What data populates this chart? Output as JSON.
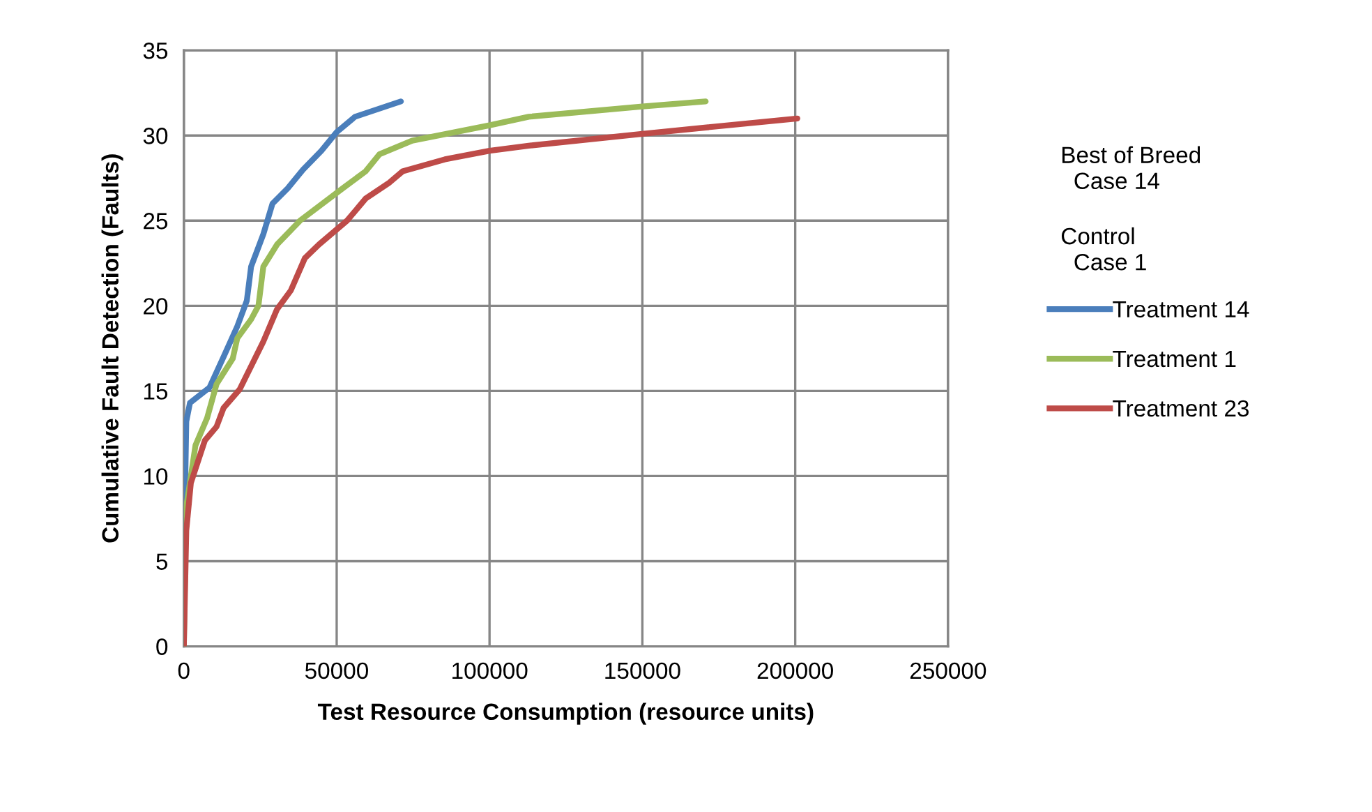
{
  "chart_data": {
    "type": "line",
    "xlabel": "Test Resource Consumption (resource units)",
    "ylabel": "Cumulative Fault Detection (Faults)",
    "annotations": [
      "Best of Breed\n  Case 14",
      "Control\n  Case 1"
    ],
    "xlim": [
      0,
      250000
    ],
    "xticks": [
      0,
      50000,
      100000,
      150000,
      200000,
      250000
    ],
    "ylim": [
      0,
      35
    ],
    "yticks": [
      0,
      5,
      10,
      15,
      20,
      25,
      30,
      35
    ],
    "grid": true,
    "legend": "right",
    "marker": "none",
    "line_style": "solid",
    "series": [
      {
        "name": "Treatment 14",
        "color": "#4a7ebb",
        "x": [
          0,
          300,
          800,
          2000,
          8400,
          13000,
          17500,
          20600,
          22000,
          26000,
          29000,
          34000,
          39000,
          45000,
          50000,
          56000,
          71000
        ],
        "values": [
          0,
          8,
          13.2,
          14.3,
          15.2,
          17,
          18.8,
          20.3,
          22.3,
          24.2,
          26,
          26.9,
          28,
          29.1,
          30.2,
          31.1,
          32
        ]
      },
      {
        "name": "Treatment 1",
        "color": "#9bbb59",
        "x": [
          0,
          500,
          800,
          3800,
          7600,
          10700,
          16000,
          17500,
          22000,
          24400,
          26000,
          30500,
          38000,
          52000,
          59500,
          64000,
          74700,
          100000,
          112800,
          150000,
          170700
        ],
        "values": [
          0,
          6,
          8.2,
          11.8,
          13.4,
          15.4,
          16.9,
          18.1,
          19.2,
          20,
          22.3,
          23.6,
          25,
          26.9,
          27.9,
          28.9,
          29.7,
          30.6,
          31.1,
          31.7,
          32
        ]
      },
      {
        "name": "Treatment 23",
        "color": "#be4b48",
        "x": [
          0,
          800,
          2300,
          6900,
          10700,
          13000,
          18300,
          26000,
          30500,
          35000,
          39600,
          44200,
          53400,
          59500,
          67000,
          71600,
          85400,
          100000,
          112800,
          150000,
          200700
        ],
        "values": [
          0,
          6.8,
          9.6,
          12.1,
          12.9,
          14,
          15.1,
          17.9,
          19.8,
          20.9,
          22.8,
          23.6,
          25,
          26.3,
          27.2,
          27.9,
          28.6,
          29.1,
          29.4,
          30.1,
          31
        ]
      }
    ]
  }
}
